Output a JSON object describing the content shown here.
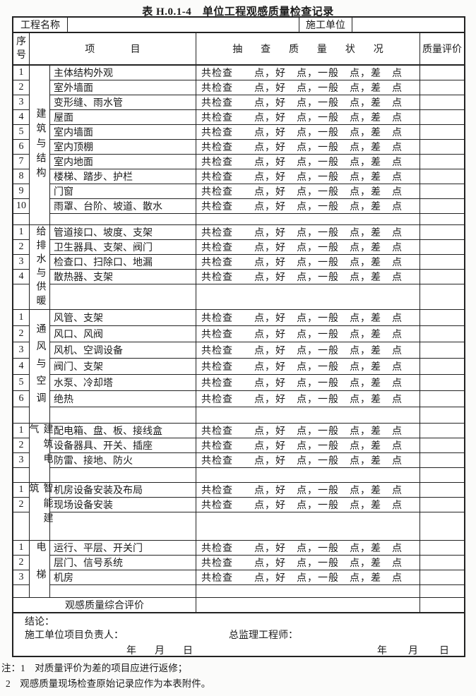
{
  "page_title": "表 H.0.1-4　单位工程观感质量检查记录",
  "top_row": {
    "project_name_label": "工程名称",
    "project_name_value": "",
    "construction_unit_label": "施工单位",
    "construction_unit_value": ""
  },
  "columns": {
    "no": "序号",
    "item": "项目",
    "status": "抽查质量状况",
    "eval": "质量评价"
  },
  "status_text": "共检查　　点，好　点，一般　点，差　点",
  "sections": [
    {
      "category": "建筑与结构",
      "rows": [
        {
          "no": "1",
          "item": "主体结构外观"
        },
        {
          "no": "2",
          "item": "室外墙面"
        },
        {
          "no": "3",
          "item": "变形缝、雨水管"
        },
        {
          "no": "4",
          "item": "屋面"
        },
        {
          "no": "5",
          "item": "室内墙面"
        },
        {
          "no": "6",
          "item": "室内顶棚"
        },
        {
          "no": "7",
          "item": "室内地面"
        },
        {
          "no": "8",
          "item": "楼梯、踏步、护栏"
        },
        {
          "no": "9",
          "item": "门窗"
        },
        {
          "no": "10",
          "item": "雨罩、台阶、坡道、散水"
        }
      ]
    },
    {
      "category": "给排水与供暖",
      "rows": [
        {
          "no": "1",
          "item": "管道接口、坡度、支架"
        },
        {
          "no": "2",
          "item": "卫生器具、支架、阀门"
        },
        {
          "no": "3",
          "item": "检查口、扫除口、地漏"
        },
        {
          "no": "4",
          "item": "散热器、支架"
        }
      ]
    },
    {
      "category": "通风与空调",
      "rows": [
        {
          "no": "1",
          "item": "风管、支架"
        },
        {
          "no": "2",
          "item": "风口、风阀"
        },
        {
          "no": "3",
          "item": "风机、空调设备"
        },
        {
          "no": "4",
          "item": "阀门、支架"
        },
        {
          "no": "5",
          "item": "水泵、冷却塔"
        },
        {
          "no": "6",
          "item": "绝热"
        }
      ]
    },
    {
      "category": "建筑电气",
      "rows": [
        {
          "no": "1",
          "item": "配电箱、盘、板、接线盒"
        },
        {
          "no": "2",
          "item": "设备器具、开关、插座"
        },
        {
          "no": "3",
          "item": "防雷、接地、防火"
        }
      ]
    },
    {
      "category": "智能建筑",
      "rows": [
        {
          "no": "1",
          "item": "机房设备安装及布局"
        },
        {
          "no": "2",
          "item": "现场设备安装"
        }
      ]
    },
    {
      "category": "电梯",
      "rows": [
        {
          "no": "1",
          "item": "运行、平层、开关门"
        },
        {
          "no": "2",
          "item": "层门、信号系统"
        },
        {
          "no": "3",
          "item": "机房"
        }
      ]
    }
  ],
  "summary": {
    "label": "观感质量综合评价",
    "status_value": "",
    "eval_value": ""
  },
  "footer": {
    "conclusion_label": "结论：",
    "contractor_label": "施工单位项目负责人：",
    "supervisor_label": "总监理工程师：",
    "date_left": "年　月　日",
    "date_right": "年　月　日"
  },
  "notes": {
    "line1": "注：1　对质量评价为差的项目应进行返修；",
    "line2": "2　观感质量现场检查原始记录应作为本表附件。"
  }
}
